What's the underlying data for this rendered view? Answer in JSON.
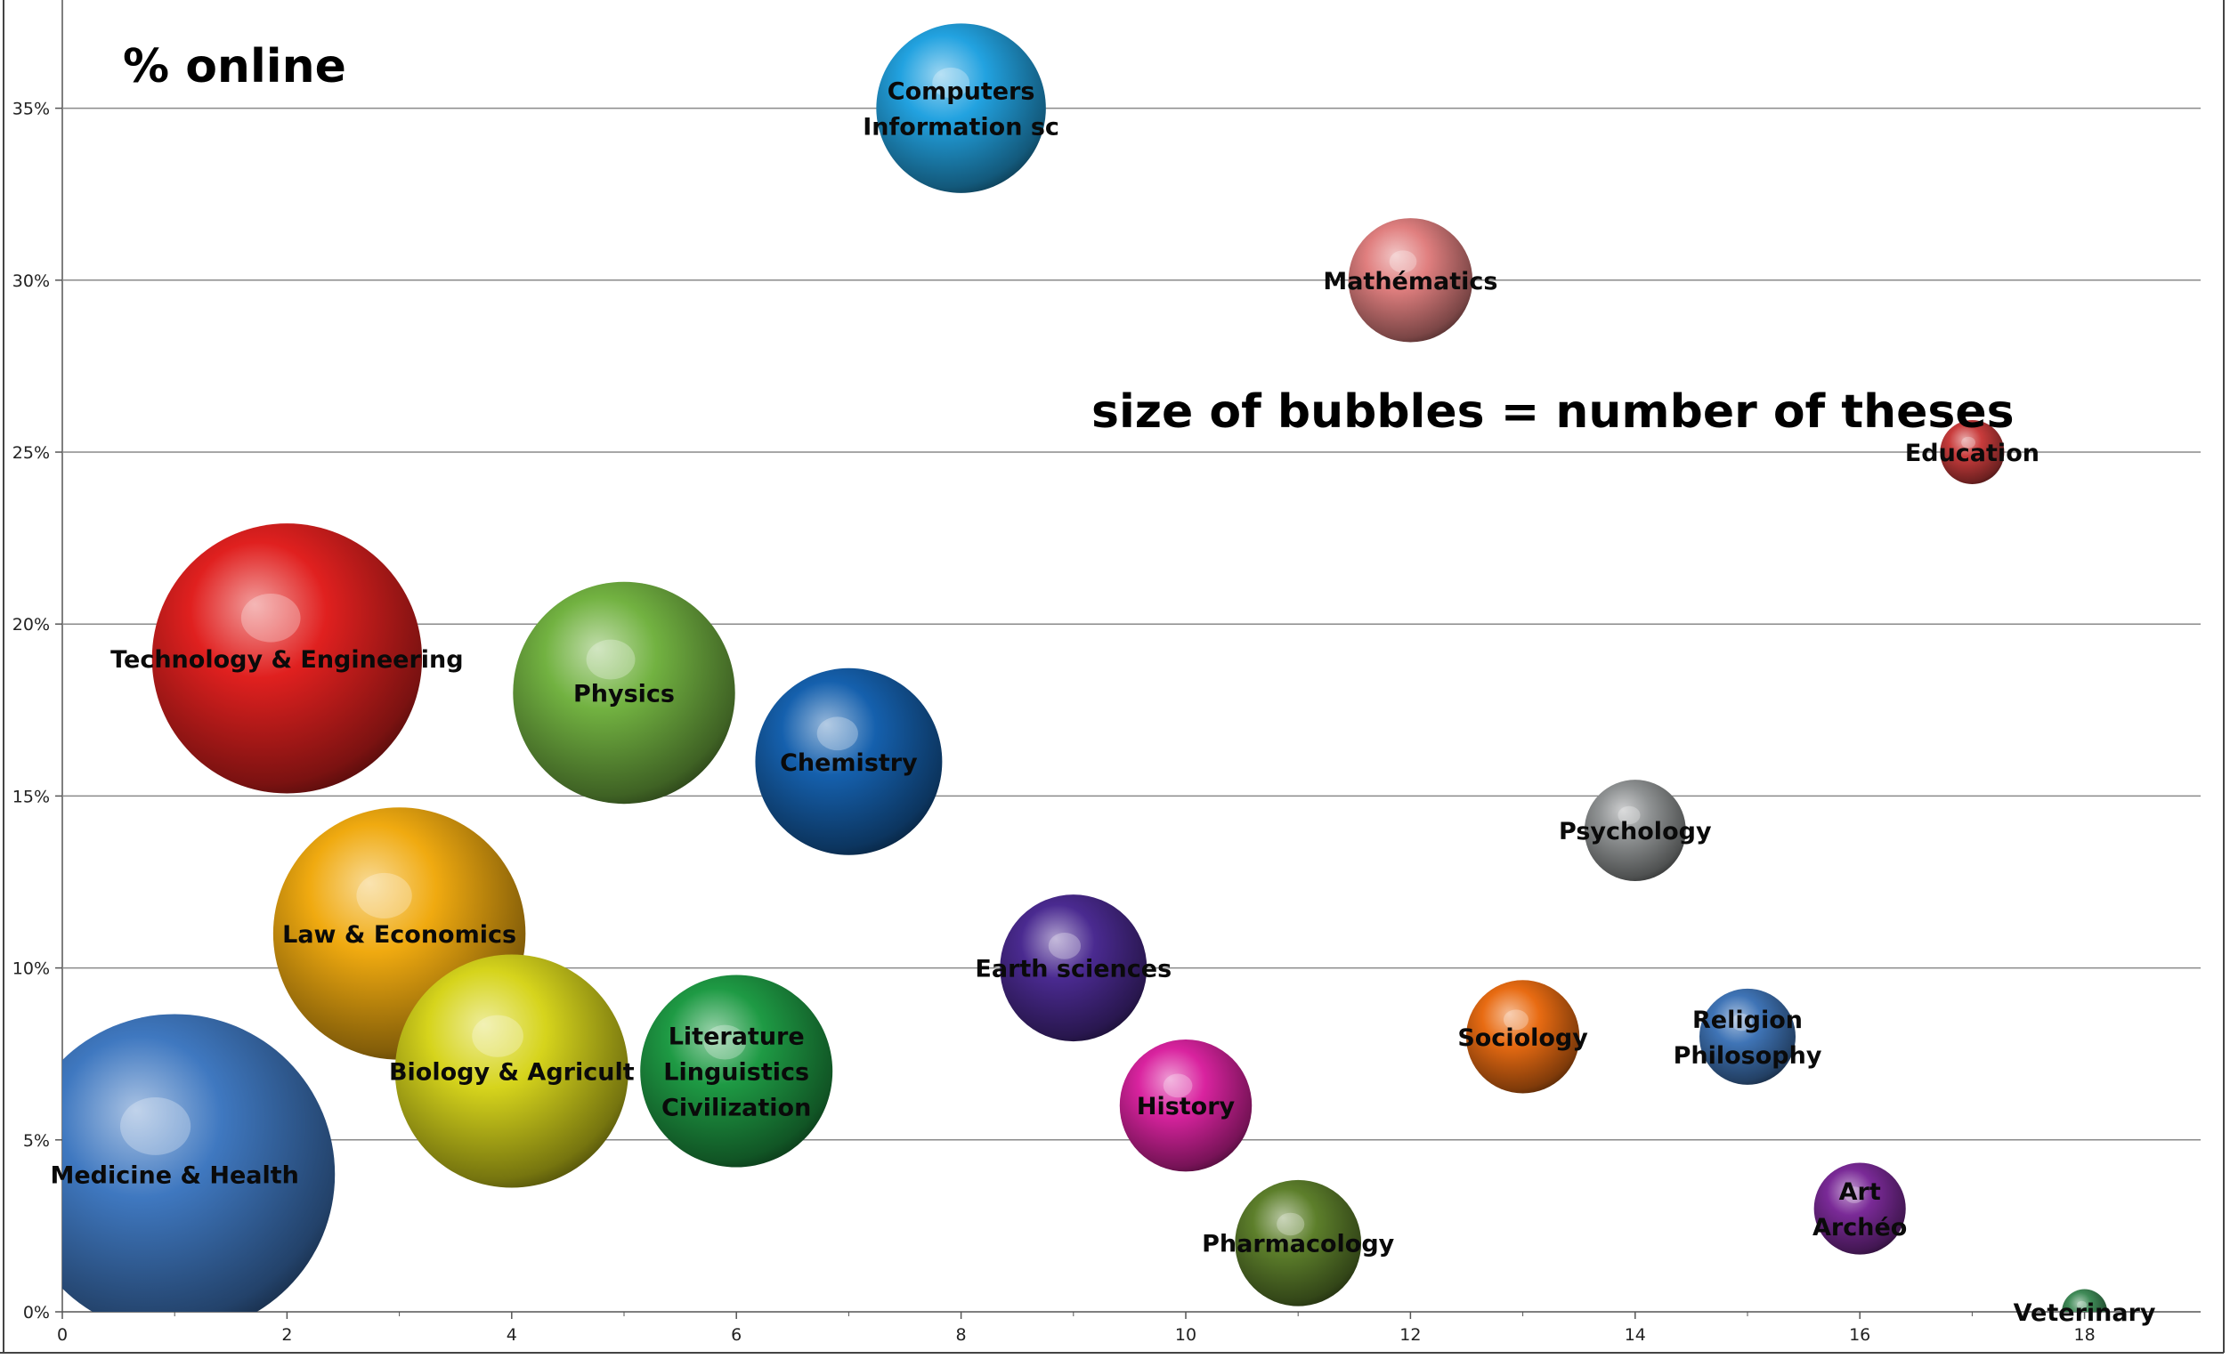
{
  "chart_data": {
    "type": "bubble",
    "title": "% online",
    "annotation": "size of bubbles = number of theses",
    "xlim": [
      0,
      19
    ],
    "ylim": [
      0,
      0.37
    ],
    "x_ticks": [
      0,
      2,
      4,
      6,
      8,
      10,
      12,
      14,
      16,
      18
    ],
    "y_ticks": [
      0,
      0.05,
      0.1,
      0.15,
      0.2,
      0.25,
      0.3,
      0.35
    ],
    "y_tick_labels": [
      "0%",
      "5%",
      "10%",
      "15%",
      "20%",
      "25%",
      "30%",
      "35%"
    ],
    "grid": "horizontal",
    "series": [
      {
        "label": [
          "Medicine & Health"
        ],
        "x": 1,
        "y": 0.04,
        "size": 100,
        "color": "#3f78c0"
      },
      {
        "label": [
          "Technology & Engineering"
        ],
        "x": 2,
        "y": 0.19,
        "size": 71,
        "color": "#e0201f"
      },
      {
        "label": [
          "Law & Economics"
        ],
        "x": 3,
        "y": 0.11,
        "size": 62,
        "color": "#f0aa10"
      },
      {
        "label": [
          "Biology  & Agricult"
        ],
        "x": 4,
        "y": 0.07,
        "size": 53,
        "color": "#d6d41c"
      },
      {
        "label": [
          "Physics"
        ],
        "x": 5,
        "y": 0.18,
        "size": 48,
        "color": "#72b241"
      },
      {
        "label": [
          "Literature",
          "Linguistics",
          "Civilization"
        ],
        "x": 6,
        "y": 0.07,
        "size": 36,
        "color": "#1e9a44"
      },
      {
        "label": [
          "Chemistry"
        ],
        "x": 7,
        "y": 0.16,
        "size": 34,
        "color": "#1560ad"
      },
      {
        "label": [
          "Computers",
          "Information  sc"
        ],
        "x": 8,
        "y": 0.35,
        "size": 28,
        "color": "#22a2e0"
      },
      {
        "label": [
          "Earth sciences"
        ],
        "x": 9,
        "y": 0.1,
        "size": 21,
        "color": "#4a2a90"
      },
      {
        "label": [
          "History"
        ],
        "x": 10,
        "y": 0.06,
        "size": 17,
        "color": "#d9239f"
      },
      {
        "label": [
          "Pharmacology"
        ],
        "x": 11,
        "y": 0.02,
        "size": 15.5,
        "color": "#5d7f2b"
      },
      {
        "label": [
          "Mathématics"
        ],
        "x": 12,
        "y": 0.3,
        "size": 15,
        "color": "#e07f7f"
      },
      {
        "label": [
          "Sociology"
        ],
        "x": 13,
        "y": 0.08,
        "size": 12.5,
        "color": "#e86b12"
      },
      {
        "label": [
          "Psychology"
        ],
        "x": 14,
        "y": 0.14,
        "size": 10,
        "color": "#909394"
      },
      {
        "label": [
          "Religion",
          "Philosophy"
        ],
        "x": 15,
        "y": 0.08,
        "size": 9,
        "color": "#3f74b6"
      },
      {
        "label": [
          "Art",
          "Archéo"
        ],
        "x": 16,
        "y": 0.03,
        "size": 8.2,
        "color": "#7a2a97"
      },
      {
        "label": [
          "Education"
        ],
        "x": 17,
        "y": 0.25,
        "size": 4,
        "color": "#c93c3c"
      },
      {
        "label": [
          "Veterinary"
        ],
        "x": 18,
        "y": 0.0,
        "size": 2,
        "color": "#3f8a57"
      }
    ]
  }
}
